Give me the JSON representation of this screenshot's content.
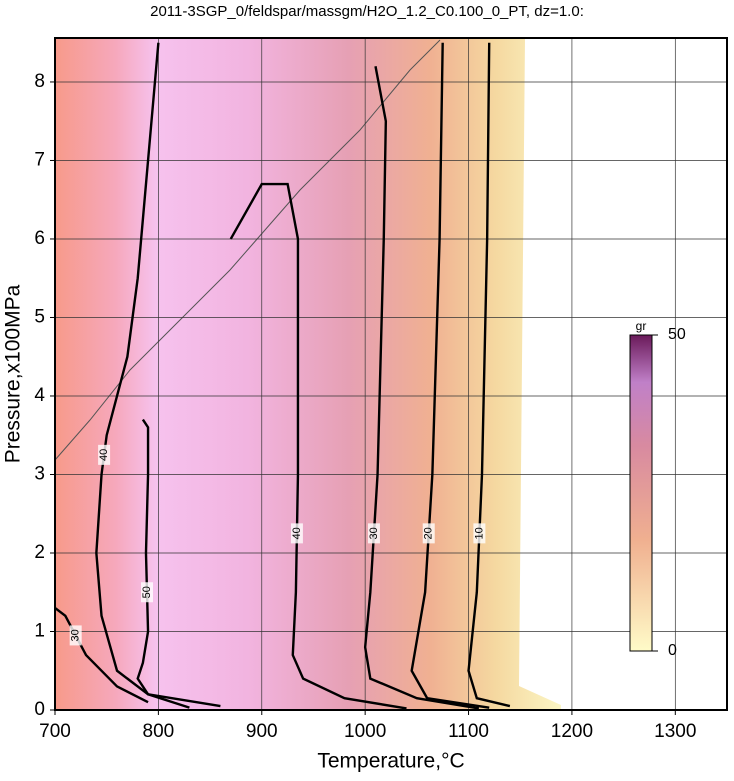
{
  "chart_data": {
    "type": "contour",
    "title": "2011-3SGP_0/feldspar/massgm/H2O_1.2_C0.100_0_PT, dz=1.0:",
    "x_label": "Temperature,°C",
    "y_label": "Pressure,x100MPa",
    "xlim": [
      700,
      1350
    ],
    "ylim": [
      0,
      8.56
    ],
    "xticks": [
      700,
      800,
      900,
      1000,
      1100,
      1200,
      1300
    ],
    "yticks": [
      0,
      1,
      2,
      3,
      4,
      5,
      6,
      7,
      8
    ],
    "grid": true,
    "colorbar": {
      "label": "gr",
      "lim": [
        0,
        50
      ],
      "ticks": [
        0,
        50
      ]
    },
    "contours": [
      {
        "level": 10,
        "x": [
          1120,
          1118,
          1113,
          1108,
          1100,
          1108,
          1140
        ],
        "y": [
          8.5,
          6,
          3,
          1.5,
          0.5,
          0.15,
          0.05
        ]
      },
      {
        "level": 20,
        "x": [
          1075,
          1072,
          1065,
          1058,
          1045,
          1060,
          1120
        ],
        "y": [
          8.5,
          6,
          3,
          1.5,
          0.5,
          0.15,
          0.03
        ]
      },
      {
        "level": 30,
        "x": [
          1010,
          1020,
          1018,
          1012,
          1005,
          1000,
          1005,
          1050,
          1110
        ],
        "y": [
          8.2,
          7.5,
          6,
          3,
          1.5,
          0.8,
          0.4,
          0.15,
          0.02
        ]
      },
      {
        "level": 40,
        "x": [
          870,
          900,
          925,
          935,
          935,
          933,
          930,
          940,
          980,
          1040
        ],
        "y": [
          6.0,
          6.7,
          6.7,
          6,
          3,
          1.5,
          0.7,
          0.4,
          0.15,
          0.02
        ]
      },
      {
        "level": 50,
        "x": [
          785,
          790,
          790,
          788,
          790,
          785,
          780,
          790,
          860
        ],
        "y": [
          3.7,
          3.6,
          3,
          2,
          1,
          0.6,
          0.4,
          0.2,
          0.05
        ]
      },
      {
        "level": 40,
        "x": [
          800,
          790,
          780,
          770,
          760,
          750,
          745,
          740,
          745,
          760,
          790,
          830
        ],
        "y": [
          8.5,
          7,
          5.5,
          4.5,
          4,
          3.5,
          3,
          2,
          1.2,
          0.5,
          0.2,
          0.03
        ]
      },
      {
        "level": 30,
        "x": [
          700,
          710,
          730,
          760,
          790
        ],
        "y": [
          1.3,
          1.2,
          0.7,
          0.3,
          0.1
        ]
      }
    ]
  }
}
